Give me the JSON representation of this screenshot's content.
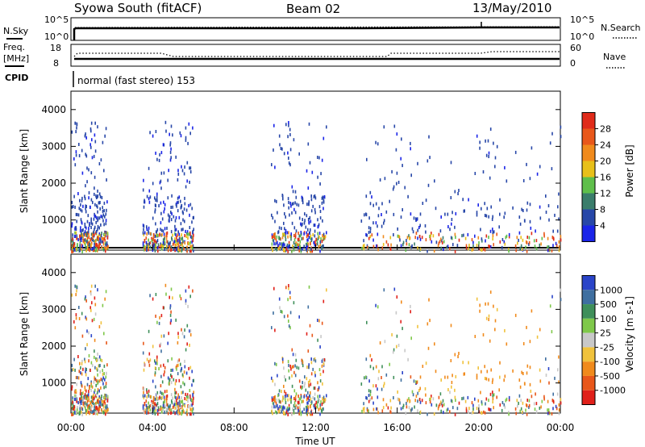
{
  "header": {
    "station": "Syowa South (fitACF)",
    "beam": "Beam 02",
    "date": "13/May/2010"
  },
  "noise_panel": {
    "left_label": "N.Sky",
    "left_ticks": [
      "10^5",
      "10^0"
    ],
    "right_label": "N.Search",
    "right_ticks": [
      "10^5",
      "10^0"
    ]
  },
  "freq_panel": {
    "left_label_1": "Freq.",
    "left_label_2": "[MHz]",
    "left_ticks": [
      "18",
      "8"
    ],
    "right_label": "Nave",
    "right_ticks": [
      "60",
      "0"
    ]
  },
  "cpid_panel": {
    "label": "CPID",
    "text": "normal (fast stereo) 153"
  },
  "chart_data": [
    {
      "type": "heatmap",
      "name": "power",
      "ylabel": "Slant Range [km]",
      "ylim": [
        180,
        4500
      ],
      "y_ticks": [
        1000,
        2000,
        3000,
        4000
      ],
      "xlim": [
        0,
        24
      ],
      "colorbar": {
        "label": "Power [dB]",
        "range": [
          0,
          32
        ],
        "tick_labels": [
          "4",
          "8",
          "12",
          "16",
          "20",
          "24",
          "28"
        ],
        "colors": [
          "#1a24e8",
          "#2747a8",
          "#3a7d6b",
          "#5fbf4b",
          "#e8c01a",
          "#f08a1c",
          "#e8571a",
          "#e02b1a"
        ]
      },
      "activity_regions_ut": [
        [
          0,
          1.8
        ],
        [
          3.5,
          6
        ],
        [
          9.8,
          12.5
        ],
        [
          14.2,
          24
        ]
      ],
      "dominant_band": "low ranges"
    },
    {
      "type": "heatmap",
      "name": "velocity",
      "ylabel": "Slant Range [km]",
      "ylim": [
        180,
        4500
      ],
      "y_ticks": [
        1000,
        2000,
        3000,
        4000
      ],
      "xlim": [
        0,
        24
      ],
      "colorbar": {
        "label": "Velocity [m s-1]",
        "tick_labels": [
          "1000",
          "500",
          "100",
          "25",
          "-25",
          "-100",
          "-500",
          "-1000"
        ],
        "colors": [
          "#2a44c8",
          "#3f6fa0",
          "#3f8f5a",
          "#7fc84a",
          "#c8c8c8",
          "#f0c23c",
          "#f08a1c",
          "#e8571a",
          "#e0201a"
        ]
      },
      "activity_regions_ut": [
        [
          0,
          1.8
        ],
        [
          3.5,
          6
        ],
        [
          9.8,
          12.5
        ],
        [
          14.2,
          24
        ]
      ],
      "dominant_band": "low ranges"
    }
  ],
  "x_axis": {
    "label": "Time UT",
    "tick_labels": [
      "00:00",
      "04:00",
      "08:00",
      "12:00",
      "16:00",
      "20:00",
      "00:00"
    ],
    "tick_values": [
      0,
      4,
      8,
      12,
      16,
      20,
      24
    ]
  }
}
